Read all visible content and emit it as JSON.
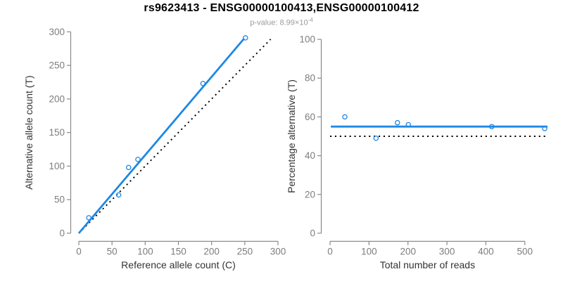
{
  "header": {
    "title": "rs9623413 - ENSG00000100413,ENSG00000100412",
    "subtitle_prefix": "p-value: 8.99×10",
    "subtitle_exponent": "-4"
  },
  "colors": {
    "fit_blue": "#1E88E5",
    "identity_black": "#000000",
    "axis_gray": "#8A8A8A",
    "tick_text_gray": "#7D7D7D",
    "axis_label_dark": "#333333",
    "subtitle_gray": "#9B9B9B",
    "title_black": "#000000",
    "background": "#FFFFFF"
  },
  "chart_data": [
    {
      "type": "scatter",
      "panel": "left",
      "xlabel": "Reference allele count (C)",
      "ylabel": "Alternative allele count (T)",
      "xlim": [
        0,
        300
      ],
      "ylim": [
        0,
        300
      ],
      "xticks": [
        0,
        50,
        100,
        150,
        200,
        250,
        300
      ],
      "yticks": [
        0,
        50,
        100,
        150,
        200,
        250,
        300
      ],
      "grid": false,
      "legend": "none",
      "points": [
        [
          15,
          23
        ],
        [
          60,
          57
        ],
        [
          75,
          98
        ],
        [
          89,
          110
        ],
        [
          187,
          223
        ],
        [
          251,
          291
        ]
      ],
      "lines": [
        {
          "name": "identity-line",
          "meaning": "y = x reference",
          "style": "dotted",
          "color": "#000000",
          "x1": 0,
          "y1": 0,
          "x2": 289,
          "y2": 289
        },
        {
          "name": "fit-line",
          "meaning": "fitted trend",
          "style": "solid",
          "color": "#1E88E5",
          "x1": 0,
          "y1": 0,
          "x2": 249,
          "y2": 290
        }
      ]
    },
    {
      "type": "scatter",
      "panel": "right",
      "xlabel": "Total number of reads",
      "ylabel": "Percentage alternative (T)",
      "xlim": [
        0,
        560
      ],
      "ylim": [
        0,
        100
      ],
      "xticks": [
        0,
        100,
        200,
        300,
        400,
        500
      ],
      "yticks": [
        0,
        20,
        40,
        60,
        80,
        100
      ],
      "grid": false,
      "legend": "none",
      "points": [
        [
          38,
          60
        ],
        [
          118,
          49
        ],
        [
          173,
          57
        ],
        [
          201,
          56
        ],
        [
          415,
          55
        ],
        [
          551,
          54
        ]
      ],
      "lines": [
        {
          "name": "reference-line-50pct",
          "meaning": "50% reference",
          "style": "dotted",
          "color": "#000000",
          "x1": 0,
          "y1": 50,
          "x2": 560,
          "y2": 50
        },
        {
          "name": "fit-line",
          "meaning": "mean percentage",
          "style": "solid",
          "color": "#1E88E5",
          "x1": 2,
          "y1": 55,
          "x2": 558,
          "y2": 55
        }
      ]
    }
  ]
}
